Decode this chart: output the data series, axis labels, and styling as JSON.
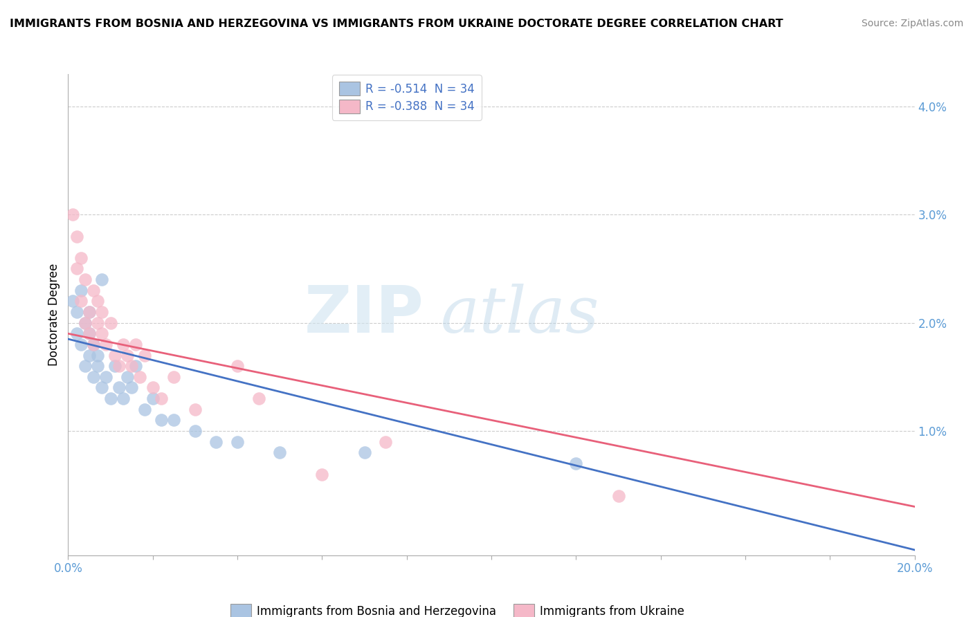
{
  "title": "IMMIGRANTS FROM BOSNIA AND HERZEGOVINA VS IMMIGRANTS FROM UKRAINE DOCTORATE DEGREE CORRELATION CHART",
  "source": "Source: ZipAtlas.com",
  "ylabel": "Doctorate Degree",
  "xmin": 0.0,
  "xmax": 0.2,
  "ymin": -0.0015,
  "ymax": 0.043,
  "blue_R": -0.514,
  "blue_N": 34,
  "pink_R": -0.388,
  "pink_N": 34,
  "blue_color": "#aac4e2",
  "pink_color": "#f5b8c8",
  "blue_line_color": "#4472c4",
  "pink_line_color": "#e8607a",
  "watermark_zip": "ZIP",
  "watermark_atlas": "atlas",
  "background_color": "#ffffff",
  "grid_color": "#cccccc",
  "blue_scatter_x": [
    0.001,
    0.002,
    0.002,
    0.003,
    0.003,
    0.004,
    0.004,
    0.005,
    0.005,
    0.005,
    0.006,
    0.006,
    0.007,
    0.007,
    0.008,
    0.008,
    0.009,
    0.01,
    0.011,
    0.012,
    0.013,
    0.014,
    0.015,
    0.016,
    0.018,
    0.02,
    0.022,
    0.025,
    0.03,
    0.035,
    0.04,
    0.05,
    0.07,
    0.12
  ],
  "blue_scatter_y": [
    0.022,
    0.019,
    0.021,
    0.018,
    0.023,
    0.016,
    0.02,
    0.017,
    0.019,
    0.021,
    0.015,
    0.018,
    0.016,
    0.017,
    0.024,
    0.014,
    0.015,
    0.013,
    0.016,
    0.014,
    0.013,
    0.015,
    0.014,
    0.016,
    0.012,
    0.013,
    0.011,
    0.011,
    0.01,
    0.009,
    0.009,
    0.008,
    0.008,
    0.007
  ],
  "pink_scatter_x": [
    0.001,
    0.002,
    0.002,
    0.003,
    0.003,
    0.004,
    0.004,
    0.005,
    0.005,
    0.006,
    0.006,
    0.007,
    0.007,
    0.008,
    0.008,
    0.009,
    0.01,
    0.011,
    0.012,
    0.013,
    0.014,
    0.015,
    0.016,
    0.017,
    0.018,
    0.02,
    0.022,
    0.025,
    0.03,
    0.04,
    0.045,
    0.06,
    0.075,
    0.13
  ],
  "pink_scatter_y": [
    0.03,
    0.025,
    0.028,
    0.026,
    0.022,
    0.024,
    0.02,
    0.021,
    0.019,
    0.023,
    0.018,
    0.022,
    0.02,
    0.019,
    0.021,
    0.018,
    0.02,
    0.017,
    0.016,
    0.018,
    0.017,
    0.016,
    0.018,
    0.015,
    0.017,
    0.014,
    0.013,
    0.015,
    0.012,
    0.016,
    0.013,
    0.006,
    0.009,
    0.004
  ]
}
